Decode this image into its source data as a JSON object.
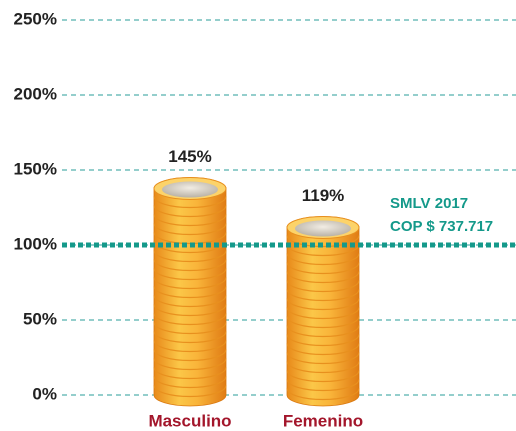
{
  "chart_data": {
    "type": "bar",
    "categories": [
      "Masculino",
      "Femenino"
    ],
    "values": [
      145,
      119
    ],
    "value_labels": [
      "145%",
      "119%"
    ],
    "ylim": [
      0,
      250
    ],
    "yticks": [
      {
        "value": 0,
        "label": "0%"
      },
      {
        "value": 50,
        "label": "50%"
      },
      {
        "value": 100,
        "label": "100%"
      },
      {
        "value": 150,
        "label": "150%"
      },
      {
        "value": 200,
        "label": "200%"
      },
      {
        "value": 250,
        "label": "250%"
      }
    ],
    "grid": true,
    "color": "#f5a623",
    "reference": {
      "value": 100,
      "color": "#14998a",
      "labels": [
        "SMLV 2017",
        "COP $ 737.717"
      ]
    }
  }
}
